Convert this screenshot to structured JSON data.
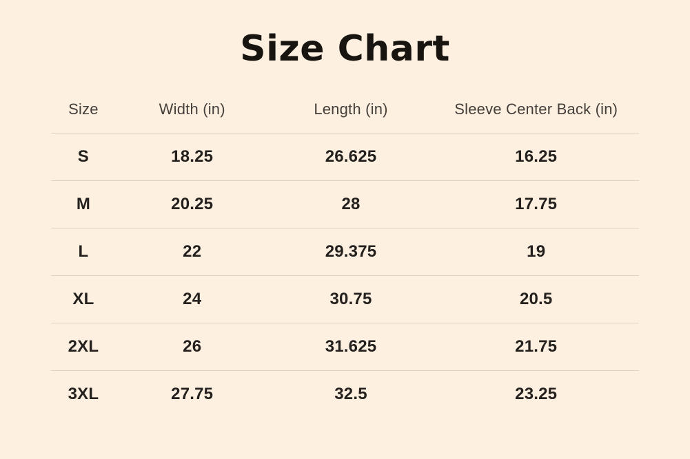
{
  "page": {
    "title": "Size Chart"
  },
  "colors": {
    "background": "#fdf0e0",
    "divider": "#ded2c1",
    "title_text": "#18140f",
    "header_text": "#45403b",
    "cell_text": "#24201d"
  },
  "chart_data": {
    "type": "table",
    "title": "Size Chart",
    "columns": [
      "Size",
      "Width (in)",
      "Length (in)",
      "Sleeve Center Back (in)"
    ],
    "rows": [
      [
        "S",
        "18.25",
        "26.625",
        "16.25"
      ],
      [
        "M",
        "20.25",
        "28",
        "17.75"
      ],
      [
        "L",
        "22",
        "29.375",
        "19"
      ],
      [
        "XL",
        "24",
        "30.75",
        "20.5"
      ],
      [
        "2XL",
        "26",
        "31.625",
        "21.75"
      ],
      [
        "3XL",
        "27.75",
        "32.5",
        "23.25"
      ]
    ],
    "layout": {
      "grid": "horizontal dividers between rows only, none below last row",
      "alignment": "all cells centered"
    }
  }
}
